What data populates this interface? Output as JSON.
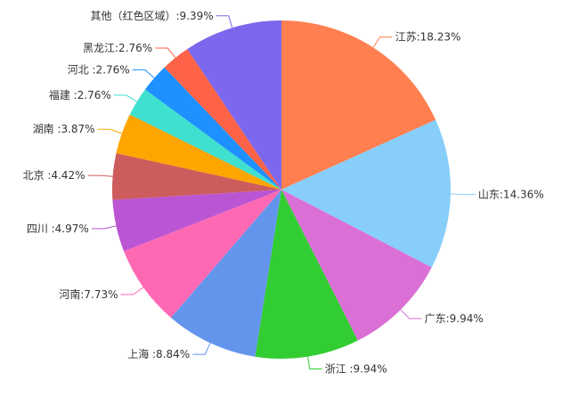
{
  "chart_data": {
    "type": "pie",
    "slices": [
      {
        "label": "江苏:18.23%",
        "value": 18.23,
        "color": "#FF7F50"
      },
      {
        "label": "山东:14.36%",
        "value": 14.36,
        "color": "#87CEFA"
      },
      {
        "label": "广东:9.94%",
        "value": 9.94,
        "color": "#DA70D6"
      },
      {
        "label": "浙江 :9.94%",
        "value": 9.94,
        "color": "#32CD32"
      },
      {
        "label": "上海 :8.84%",
        "value": 8.84,
        "color": "#6495ED"
      },
      {
        "label": "河南:7.73%",
        "value": 7.73,
        "color": "#FF69B4"
      },
      {
        "label": "四川 :4.97%",
        "value": 4.97,
        "color": "#BA55D3"
      },
      {
        "label": "北京 :4.42%",
        "value": 4.42,
        "color": "#CD5C5C"
      },
      {
        "label": "湖南 :3.87%",
        "value": 3.87,
        "color": "#FFA500"
      },
      {
        "label": "福建 :2.76%",
        "value": 2.76,
        "color": "#40E0D0"
      },
      {
        "label": "河北 :2.76%",
        "value": 2.76,
        "color": "#1E90FF"
      },
      {
        "label": "黑龙江:2.76%",
        "value": 2.76,
        "color": "#FF6347"
      },
      {
        "label": "其他（红色区域）:9.39%",
        "value": 9.39,
        "color": "#7B68EE"
      }
    ]
  }
}
